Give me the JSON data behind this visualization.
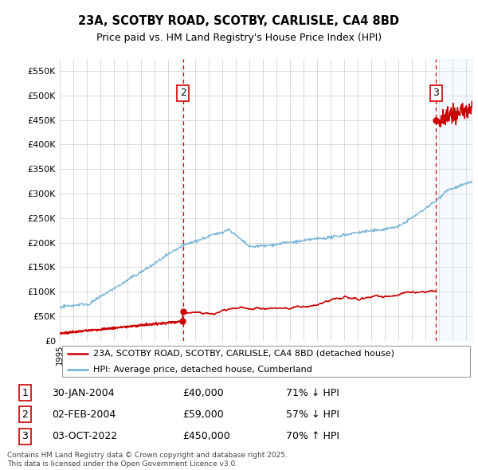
{
  "title1": "23A, SCOTBY ROAD, SCOTBY, CARLISLE, CA4 8BD",
  "title2": "Price paid vs. HM Land Registry's House Price Index (HPI)",
  "ylabel_ticks": [
    "£0",
    "£50K",
    "£100K",
    "£150K",
    "£200K",
    "£250K",
    "£300K",
    "£350K",
    "£400K",
    "£450K",
    "£500K",
    "£550K"
  ],
  "ytick_values": [
    0,
    50000,
    100000,
    150000,
    200000,
    250000,
    300000,
    350000,
    400000,
    450000,
    500000,
    550000
  ],
  "ylim": [
    0,
    575000
  ],
  "xlim_start": 1995.0,
  "xlim_end": 2025.5,
  "hpi_color": "#6baed6",
  "price_color": "#cc0000",
  "dashed_line_color": "#cc0000",
  "shade_color": "#ddeeff",
  "transaction_dates": [
    2004.077,
    2004.087,
    2022.75
  ],
  "transaction_prices": [
    40000,
    59000,
    450000
  ],
  "transaction_labels": [
    "1",
    "2",
    "3"
  ],
  "legend_line1": "23A, SCOTBY ROAD, SCOTBY, CARLISLE, CA4 8BD (detached house)",
  "legend_line2": "HPI: Average price, detached house, Cumberland",
  "table_data": [
    [
      "1",
      "30-JAN-2004",
      "£40,000",
      "71% ↓ HPI"
    ],
    [
      "2",
      "02-FEB-2004",
      "£59,000",
      "57% ↓ HPI"
    ],
    [
      "3",
      "03-OCT-2022",
      "£450,000",
      "70% ↑ HPI"
    ]
  ],
  "footnote": "Contains HM Land Registry data © Crown copyright and database right 2025.\nThis data is licensed under the Open Government Licence v3.0.",
  "background_color": "#ffffff",
  "grid_color": "#cccccc"
}
